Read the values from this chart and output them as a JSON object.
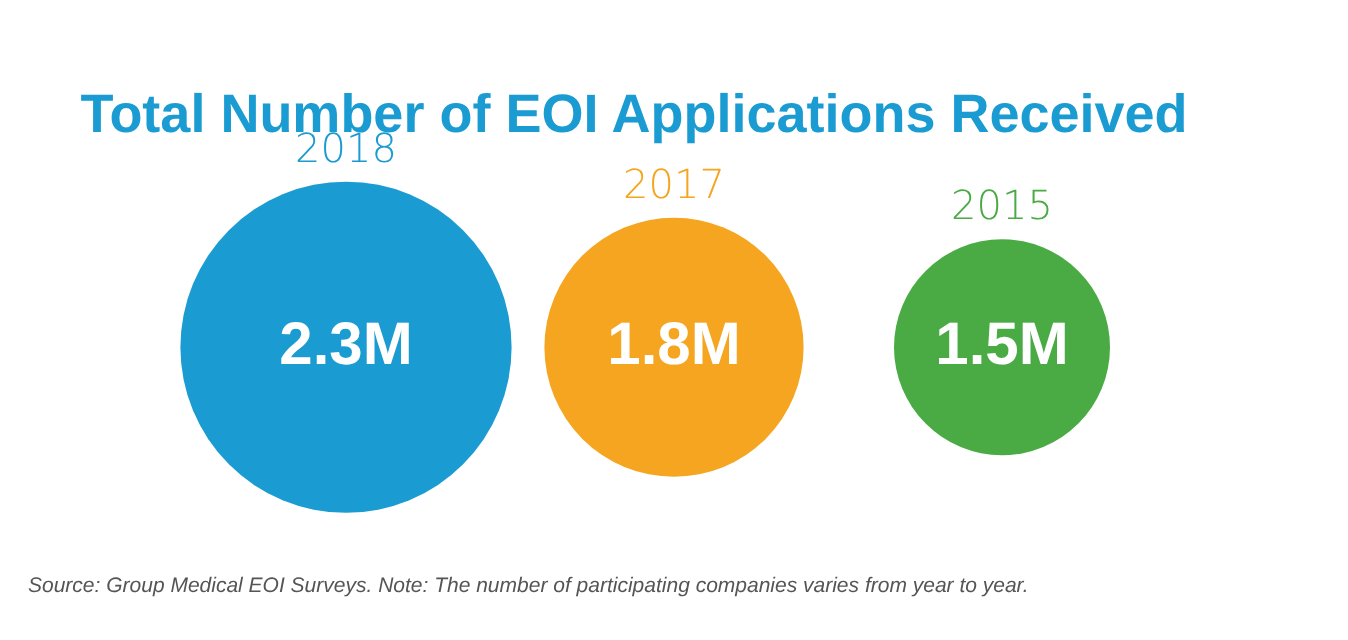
{
  "chart_data": {
    "type": "other",
    "title": "Total Number of EOI Applications Received",
    "categories": [
      "2018",
      "2017",
      "2015"
    ],
    "values": [
      2.3,
      1.8,
      1.5
    ],
    "value_labels": [
      "2.3M",
      "1.8M",
      "1.5M"
    ],
    "colors": [
      "#1a9bd1",
      "#f5a51f",
      "#4aab45"
    ],
    "annotations": [
      "Source: Group Medical EOI Surveys. Note: The number of participating companies varies from year to year."
    ]
  }
}
